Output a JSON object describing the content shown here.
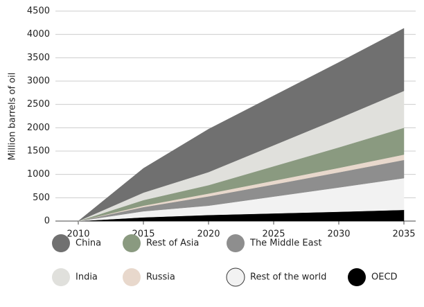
{
  "chart_data": {
    "type": "stacked_area",
    "y_label": "Million barrels of oil",
    "x": [
      2010,
      2015,
      2020,
      2025,
      2030,
      2035
    ],
    "xlim": [
      2010,
      2035
    ],
    "xticks": [
      2010,
      2015,
      2020,
      2025,
      2030,
      2035
    ],
    "ylim": [
      0,
      4500
    ],
    "yticks": [
      0,
      500,
      1000,
      1500,
      2000,
      2500,
      3000,
      3500,
      4000,
      4500
    ],
    "grid": true,
    "series": [
      {
        "name": "OECD",
        "color": "#000000",
        "values": [
          0,
          80,
          130,
          165,
          200,
          240
        ]
      },
      {
        "name": "Rest of the world",
        "color": "#f2f2f2",
        "values": [
          0,
          130,
          200,
          360,
          520,
          680
        ]
      },
      {
        "name": "The Middle East",
        "color": "#8e8e8e",
        "values": [
          0,
          90,
          200,
          260,
          325,
          390
        ]
      },
      {
        "name": "Russia",
        "color": "#e8d8cc",
        "values": [
          0,
          30,
          60,
          80,
          95,
          115
        ]
      },
      {
        "name": "Rest of Asia",
        "color": "#8a9a80",
        "values": [
          0,
          120,
          180,
          310,
          440,
          575
        ]
      },
      {
        "name": "India",
        "color": "#e0e0dc",
        "values": [
          0,
          160,
          280,
          450,
          620,
          790
        ]
      },
      {
        "name": "China",
        "color": "#707070",
        "values": [
          0,
          520,
          920,
          1060,
          1200,
          1340
        ]
      }
    ]
  }
}
